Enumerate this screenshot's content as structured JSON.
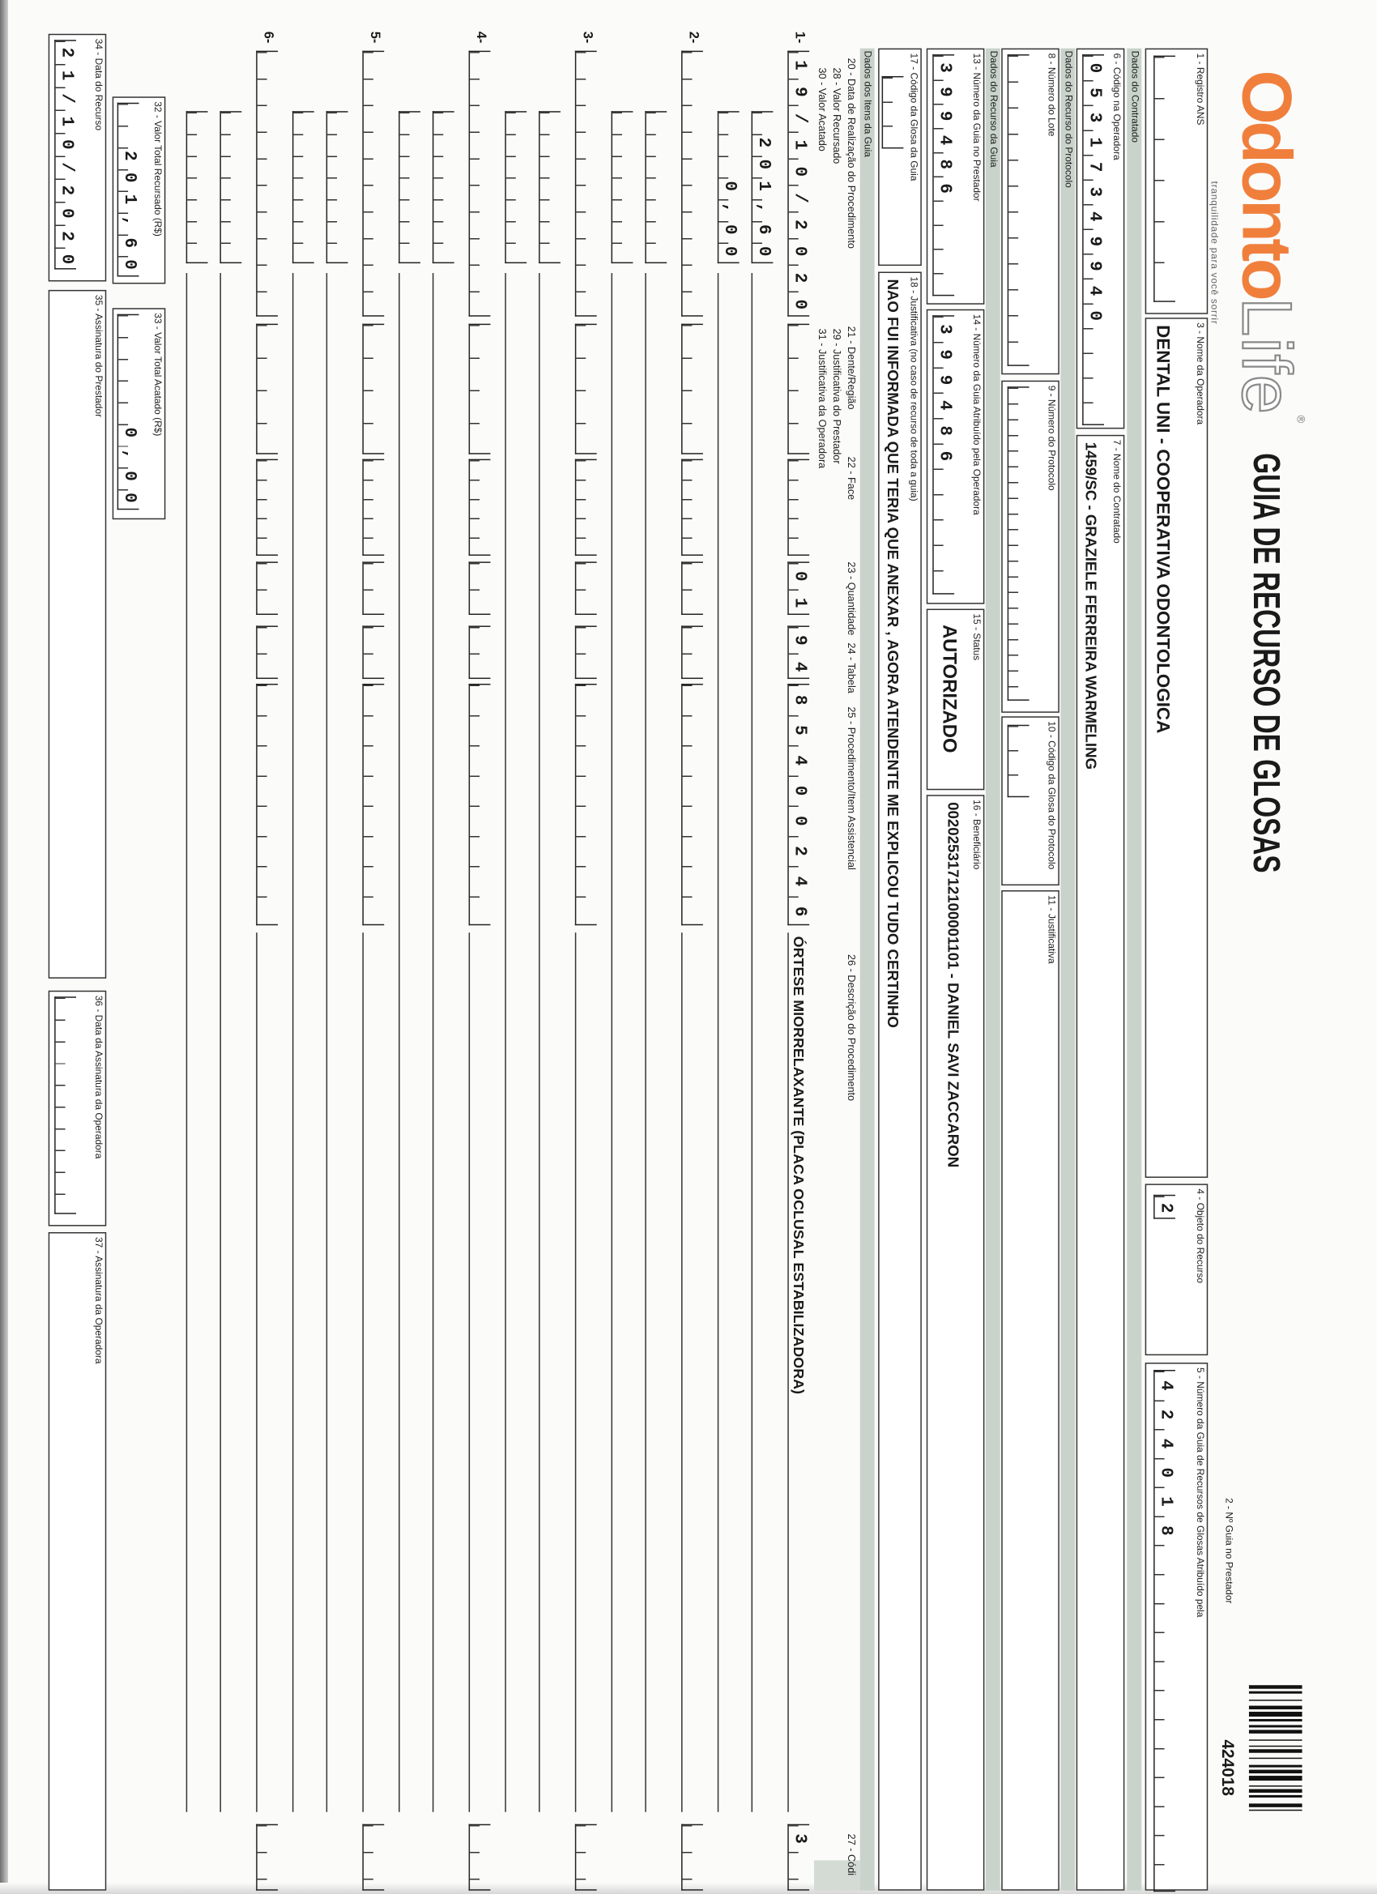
{
  "brand": {
    "logo_text": "OdontoLife",
    "tagline": "tranquilidade para você sorrir",
    "color": "#f07f3c"
  },
  "title": "GUIA DE RECURSO DE GLOSAS",
  "guia_prestador": {
    "label": "2 - Nº Guia no Prestador",
    "value": "424018"
  },
  "sections": {
    "contratado": "Dados do Contratado",
    "recurso_protocolo": "Dados do Recurso do Protocolo",
    "recurso_guia": "Dados do Recurso da Guia",
    "itens": "Dados dos Itens da Guia"
  },
  "fields": {
    "f1": {
      "label": "1 - Registro ANS",
      "value": ""
    },
    "f3": {
      "label": "3 - Nome da Operadora",
      "value": "DENTAL UNI - COOPERATIVA ODONTOLOGICA"
    },
    "f4": {
      "label": "4 - Objeto do Recurso",
      "value": "2"
    },
    "f5": {
      "label": "5 - Número da Guia de Recursos de Glosas Atribuído pela",
      "value": "424018"
    },
    "f6": {
      "label": "6 - Código na Operadora",
      "value": "05317349940"
    },
    "f7": {
      "label": "7 - Nome do Contratado",
      "value": "1459/SC - GRAZIELE FERREIRA WARMELING"
    },
    "f8": {
      "label": "8 - Número do Lote",
      "value": ""
    },
    "f9": {
      "label": "9 - Número do Protocolo",
      "value": ""
    },
    "f10": {
      "label": "10 - Código da Glosa do Protocolo",
      "value": ""
    },
    "f11": {
      "label": "11 - Justificativa",
      "value": ""
    },
    "f13": {
      "label": "13 - Número da Guia no Prestador",
      "value": "399486"
    },
    "f14": {
      "label": "14 - Número da Guia Atribuído pela Operadora",
      "value": "399486"
    },
    "f15": {
      "label": "15 - Status",
      "value": "AUTORIZADO"
    },
    "f16": {
      "label": "16 - Beneficiário",
      "value": "00202531712100001101 - DANIEL SAVI ZACCARON"
    },
    "f17": {
      "label": "17 - Código da Glosa da Guia",
      "value": ""
    },
    "f18": {
      "label": "18 - Justificativa (no caso de recurso de toda a guia)",
      "value": "NAO FUI INFORMADA QUE TERIA QUE ANEXAR , AGORA ATENDENTE ME EXPLICOU TUDO CERTINHO"
    },
    "f32": {
      "label": "32 - Valor Total Recursado (R$)",
      "value": "201,60"
    },
    "f33": {
      "label": "33 - Valor Total Acatado (R$)",
      "value": "0,00"
    },
    "f34": {
      "label": "34 - Data do Recurso",
      "value": "21/10/2020"
    },
    "f35": {
      "label": "35 - Assinatura do Prestador",
      "value": ""
    },
    "f36": {
      "label": "36 - Data da Assinatura da Operadora",
      "value": ""
    },
    "f37": {
      "label": "37 - Assinatura da Operadora",
      "value": ""
    }
  },
  "item_headers": {
    "h20": "20 - Data de Realização do Procedimento",
    "h21": "21 - Dente/Região",
    "h22": "22 - Face",
    "h23": "23 - Quantidade",
    "h24": "24 - Tabela",
    "h25": "25 - Procedimento/Item Assistencial",
    "h26": "26 - Descrição do Procedimento",
    "h27": "27 - Códi",
    "h28": "28 - Valor Recursado",
    "h29": "29 - Justificativa do Prestador",
    "h30": "30 - Valor Acatado",
    "h31": "31 - Justificativa da Operadora"
  },
  "items": [
    {
      "num": "1-",
      "data": "19/10/2020",
      "dente": "",
      "face": "",
      "quantidade": "01",
      "tabela": "94",
      "procedimento": "85400246",
      "descricao": "ÓRTESE MIORRELAXANTE (PLACA OCLUSAL ESTABILIZADORA)",
      "codigo": "3",
      "valor_recursado": "201,60",
      "justificativa_prestador": "",
      "valor_acatado": "0,00",
      "justificativa_operadora": ""
    },
    {
      "num": "2-",
      "data": "",
      "dente": "",
      "face": "",
      "quantidade": "",
      "tabela": "",
      "procedimento": "",
      "descricao": "",
      "codigo": "",
      "valor_recursado": "",
      "justificativa_prestador": "",
      "valor_acatado": "",
      "justificativa_operadora": ""
    },
    {
      "num": "3-",
      "data": "",
      "dente": "",
      "face": "",
      "quantidade": "",
      "tabela": "",
      "procedimento": "",
      "descricao": "",
      "codigo": "",
      "valor_recursado": "",
      "justificativa_prestador": "",
      "valor_acatado": "",
      "justificativa_operadora": ""
    },
    {
      "num": "4-",
      "data": "",
      "dente": "",
      "face": "",
      "quantidade": "",
      "tabela": "",
      "procedimento": "",
      "descricao": "",
      "codigo": "",
      "valor_recursado": "",
      "justificativa_prestador": "",
      "valor_acatado": "",
      "justificativa_operadora": ""
    },
    {
      "num": "5-",
      "data": "",
      "dente": "",
      "face": "",
      "quantidade": "",
      "tabela": "",
      "procedimento": "",
      "descricao": "",
      "codigo": "",
      "valor_recursado": "",
      "justificativa_prestador": "",
      "valor_acatado": "",
      "justificativa_operadora": ""
    },
    {
      "num": "6-",
      "data": "",
      "dente": "",
      "face": "",
      "quantidade": "",
      "tabela": "",
      "procedimento": "",
      "descricao": "",
      "codigo": "",
      "valor_recursado": "",
      "justificativa_prestador": "",
      "valor_acatado": "",
      "justificativa_operadora": ""
    }
  ]
}
